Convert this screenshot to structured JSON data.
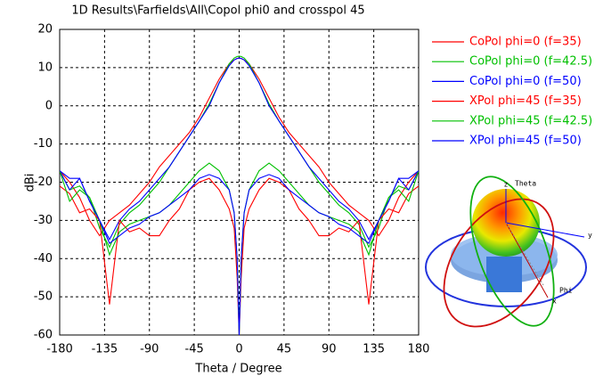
{
  "chart_data": {
    "type": "line",
    "title": "1D Results\\Farfields\\All\\Copol phi0 and crosspol 45",
    "x_label": "Theta / Degree",
    "y_label": "dBi",
    "x": [
      -180,
      -170,
      -160,
      -150,
      -140,
      -130,
      -120,
      -110,
      -100,
      -90,
      -80,
      -70,
      -60,
      -50,
      -40,
      -30,
      -20,
      -10,
      -5,
      -2,
      0,
      2,
      5,
      10,
      20,
      30,
      40,
      50,
      60,
      70,
      80,
      90,
      100,
      110,
      120,
      130,
      140,
      150,
      160,
      170,
      180
    ],
    "xlim": [
      -180,
      180
    ],
    "xticks": [
      -180,
      -135,
      -90,
      -45,
      0,
      45,
      90,
      135,
      180
    ],
    "ylim": [
      -60,
      20
    ],
    "yticks": [
      -60,
      -50,
      -40,
      -30,
      -20,
      -10,
      0,
      10,
      20
    ],
    "grid": true,
    "legend": "right",
    "series": [
      {
        "name": "CoPol phi=0 (f=35)",
        "color": "#ff0000",
        "values": [
          -17,
          -20,
          -24,
          -30,
          -34,
          -30,
          -28,
          -26,
          -23,
          -20,
          -16,
          -13,
          -10,
          -7,
          -3,
          2,
          7,
          11,
          12,
          12.4,
          12.5,
          12.4,
          12,
          11,
          7,
          2,
          -3,
          -7,
          -10,
          -13,
          -16,
          -20,
          -23,
          -26,
          -28,
          -30,
          -34,
          -30,
          -24,
          -20,
          -17
        ]
      },
      {
        "name": "CoPol phi=0 (f=42.5)",
        "color": "#00c000",
        "values": [
          -17,
          -22,
          -21,
          -24,
          -32,
          -37,
          -31,
          -28,
          -26,
          -23,
          -20,
          -16,
          -12,
          -8,
          -4,
          0.5,
          6,
          11,
          12.5,
          12.9,
          13,
          12.9,
          12.5,
          11,
          6,
          0.5,
          -4,
          -8,
          -12,
          -16,
          -20,
          -23,
          -26,
          -28,
          -31,
          -37,
          -32,
          -24,
          -21,
          -22,
          -17
        ]
      },
      {
        "name": "CoPol phi=0 (f=50)",
        "color": "#0000ff",
        "values": [
          -17,
          -22,
          -19,
          -25,
          -30,
          -35,
          -30,
          -27,
          -25,
          -22,
          -19,
          -16,
          -12,
          -8,
          -4,
          0,
          6,
          10.5,
          12,
          12.4,
          12.5,
          12.4,
          12,
          10.5,
          6,
          0,
          -4,
          -8,
          -12,
          -16,
          -19,
          -22,
          -25,
          -27,
          -30,
          -35,
          -30,
          -25,
          -19,
          -22,
          -17
        ]
      },
      {
        "name": "XPol phi=45  (f=35)",
        "color": "#ff0000",
        "values": [
          -21,
          -23,
          -28,
          -27,
          -30,
          -52,
          -30,
          -33,
          -32,
          -34,
          -34,
          -30,
          -27,
          -22,
          -20,
          -19,
          -22,
          -27,
          -32,
          -45,
          -60,
          -45,
          -32,
          -27,
          -22,
          -19,
          -20,
          -22,
          -27,
          -30,
          -34,
          -34,
          -32,
          -33,
          -30,
          -52,
          -30,
          -27,
          -28,
          -23,
          -21
        ]
      },
      {
        "name": "XPol phi=45 (f=42.5)",
        "color": "#00c000",
        "values": [
          -17,
          -25,
          -22,
          -24,
          -30,
          -39,
          -33,
          -31,
          -30,
          -29,
          -28,
          -26,
          -23,
          -20,
          -17,
          -15,
          -17,
          -22,
          -28,
          -40,
          -60,
          -40,
          -28,
          -22,
          -17,
          -15,
          -17,
          -20,
          -23,
          -26,
          -28,
          -29,
          -30,
          -31,
          -33,
          -39,
          -30,
          -24,
          -22,
          -25,
          -17
        ]
      },
      {
        "name": "XPol phi=45 (f=50)",
        "color": "#0000ff",
        "values": [
          -17,
          -19,
          -19,
          -25,
          -30,
          -36,
          -34,
          -32,
          -31,
          -29,
          -28,
          -26,
          -24,
          -22,
          -19,
          -18,
          -19,
          -22,
          -28,
          -40,
          -60,
          -40,
          -28,
          -22,
          -19,
          -18,
          -19,
          -22,
          -24,
          -26,
          -28,
          -29,
          -31,
          -32,
          -34,
          -36,
          -30,
          -25,
          -19,
          -19,
          -17
        ]
      }
    ]
  },
  "inset": {
    "labels": [
      "z",
      "Theta",
      "y",
      "Phi",
      "x"
    ]
  }
}
